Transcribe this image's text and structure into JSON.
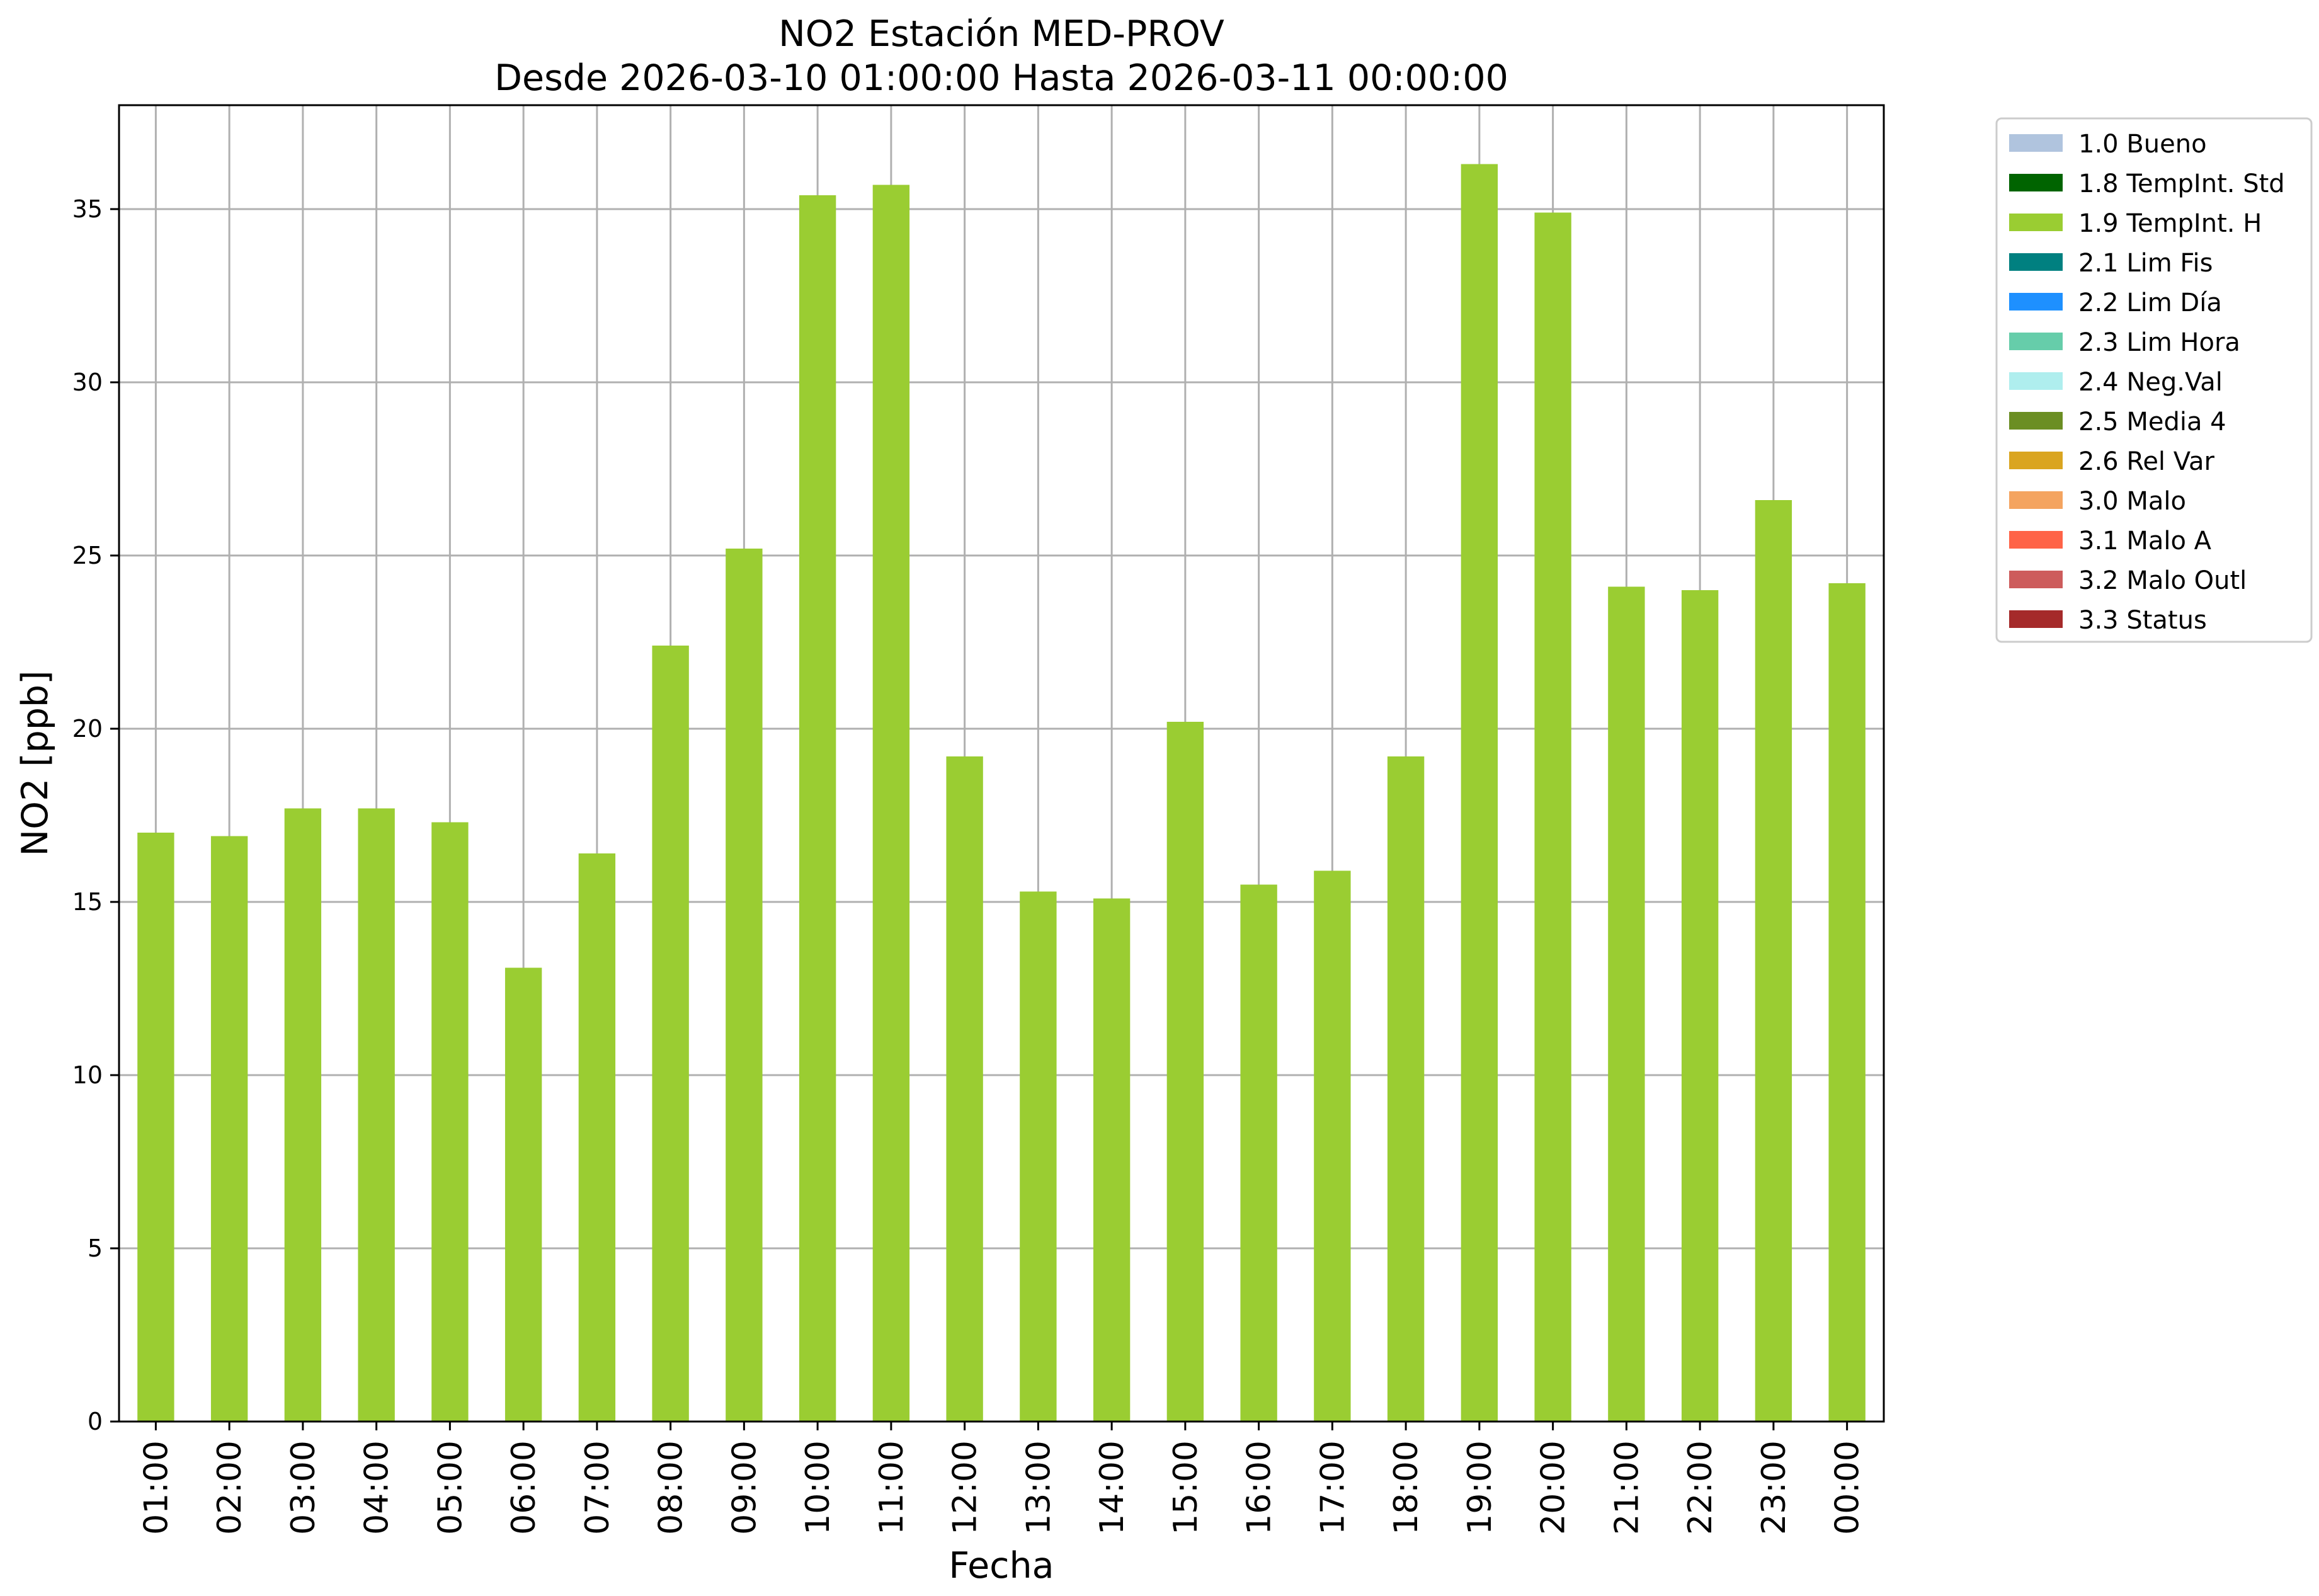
{
  "chart_data": {
    "type": "bar",
    "title": "NO2 Estación MED-PROV",
    "subtitle": "Desde 2026-03-10 01:00:00 Hasta 2026-03-11 00:00:00",
    "xlabel": "Fecha",
    "ylabel": "NO2 [ppb]",
    "ylim": [
      0,
      38
    ],
    "yticks": [
      0,
      5,
      10,
      15,
      20,
      25,
      30,
      35
    ],
    "grid": true,
    "legend_position": "outside-right",
    "categories": [
      "01:00",
      "02:00",
      "03:00",
      "04:00",
      "05:00",
      "06:00",
      "07:00",
      "08:00",
      "09:00",
      "10:00",
      "11:00",
      "12:00",
      "13:00",
      "14:00",
      "15:00",
      "16:00",
      "17:00",
      "18:00",
      "19:00",
      "20:00",
      "21:00",
      "22:00",
      "23:00",
      "00:00"
    ],
    "series": [
      {
        "name": "1.9 TempInt. H",
        "color": "#9acd32",
        "values": [
          17.0,
          16.9,
          17.7,
          17.7,
          17.3,
          13.1,
          16.4,
          22.4,
          25.2,
          35.4,
          35.7,
          19.2,
          15.3,
          15.1,
          20.2,
          15.5,
          15.9,
          19.2,
          36.3,
          34.9,
          24.1,
          24.0,
          26.6,
          24.2
        ]
      }
    ],
    "legend": [
      {
        "label": "1.0 Bueno",
        "color": "#b0c4de"
      },
      {
        "label": "1.8 TempInt. Std",
        "color": "#006400"
      },
      {
        "label": "1.9 TempInt. H",
        "color": "#9acd32"
      },
      {
        "label": "2.1 Lim Fis",
        "color": "#008080"
      },
      {
        "label": "2.2 Lim Día",
        "color": "#1e90ff"
      },
      {
        "label": "2.3 Lim Hora",
        "color": "#66cdaa"
      },
      {
        "label": "2.4 Neg.Val",
        "color": "#afeeee"
      },
      {
        "label": "2.5 Media 4",
        "color": "#6b8e23"
      },
      {
        "label": "2.6 Rel Var",
        "color": "#daa520"
      },
      {
        "label": "3.0 Malo",
        "color": "#f4a460"
      },
      {
        "label": "3.1 Malo A",
        "color": "#ff6347"
      },
      {
        "label": "3.2 Malo Outl",
        "color": "#cd5c5c"
      },
      {
        "label": "3.3 Status",
        "color": "#a52a2a"
      }
    ]
  }
}
